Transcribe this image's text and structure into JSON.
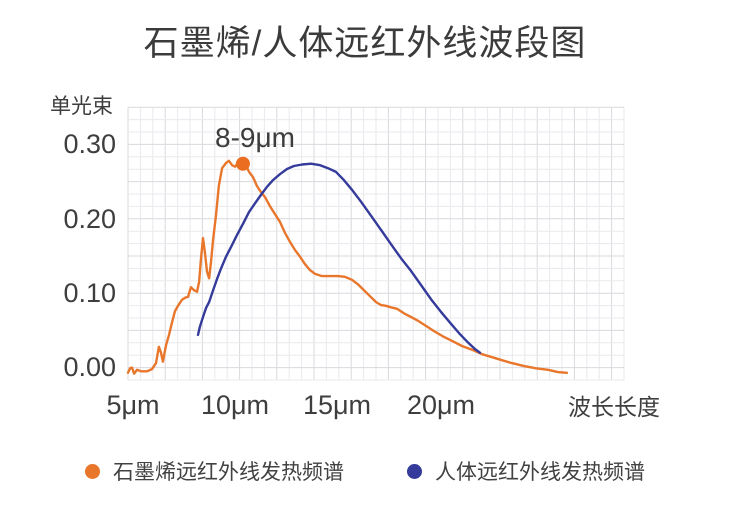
{
  "page": {
    "title": "石墨烯/人体远红外线波段图"
  },
  "chart_data": {
    "type": "line",
    "title": "石墨烯/人体远红外线波段图",
    "y_axis": {
      "unit_label": "单光束",
      "ticks": [
        "0.30",
        "0.20",
        "0.10",
        "0.00"
      ],
      "tick_values": [
        0.3,
        0.2,
        0.1,
        0.0
      ],
      "range": [
        -0.017,
        0.35
      ]
    },
    "x_axis": {
      "label": "波长长度",
      "unit": "μm",
      "ticks": [
        "5μm",
        "10μm",
        "15μm",
        "20μm"
      ],
      "tick_values": [
        5,
        10,
        15,
        20
      ],
      "range": [
        5,
        28.7
      ]
    },
    "grid": {
      "show": true,
      "minor_color": "#eaeaee",
      "major_color": "#d9d9de",
      "major_every": 3
    },
    "annotation": {
      "label": "8-9μm",
      "marker": {
        "x": 10.5,
        "y": 0.274
      },
      "marker_color": "#EA6D20",
      "marker_radius": 7
    },
    "legend_position": "bottom",
    "series": [
      {
        "name": "石墨烯远红外线发热频谱",
        "color": "#E8762B",
        "points": [
          [
            5.0,
            -0.007
          ],
          [
            5.1,
            -0.001
          ],
          [
            5.19,
            0.0
          ],
          [
            5.29,
            -0.008
          ],
          [
            5.43,
            -0.003
          ],
          [
            5.62,
            -0.005
          ],
          [
            5.91,
            -0.005
          ],
          [
            6.15,
            -0.002
          ],
          [
            6.34,
            0.006
          ],
          [
            6.48,
            0.028
          ],
          [
            6.58,
            0.02
          ],
          [
            6.67,
            0.008
          ],
          [
            6.82,
            0.03
          ],
          [
            6.96,
            0.044
          ],
          [
            7.11,
            0.061
          ],
          [
            7.25,
            0.076
          ],
          [
            7.39,
            0.083
          ],
          [
            7.58,
            0.091
          ],
          [
            7.73,
            0.094
          ],
          [
            7.87,
            0.095
          ],
          [
            8.01,
            0.108
          ],
          [
            8.16,
            0.104
          ],
          [
            8.3,
            0.102
          ],
          [
            8.4,
            0.115
          ],
          [
            8.49,
            0.145
          ],
          [
            8.59,
            0.174
          ],
          [
            8.68,
            0.155
          ],
          [
            8.78,
            0.129
          ],
          [
            8.88,
            0.12
          ],
          [
            8.97,
            0.142
          ],
          [
            9.07,
            0.172
          ],
          [
            9.21,
            0.205
          ],
          [
            9.35,
            0.245
          ],
          [
            9.5,
            0.268
          ],
          [
            9.69,
            0.275
          ],
          [
            9.83,
            0.278
          ],
          [
            9.98,
            0.272
          ],
          [
            10.12,
            0.27
          ],
          [
            10.26,
            0.275
          ],
          [
            10.45,
            0.278
          ],
          [
            10.6,
            0.275
          ],
          [
            10.79,
            0.263
          ],
          [
            10.98,
            0.256
          ],
          [
            11.17,
            0.244
          ],
          [
            11.36,
            0.236
          ],
          [
            11.56,
            0.229
          ],
          [
            11.75,
            0.219
          ],
          [
            11.99,
            0.208
          ],
          [
            12.27,
            0.196
          ],
          [
            12.51,
            0.181
          ],
          [
            12.75,
            0.169
          ],
          [
            12.99,
            0.158
          ],
          [
            13.23,
            0.149
          ],
          [
            13.47,
            0.139
          ],
          [
            13.71,
            0.131
          ],
          [
            13.95,
            0.126
          ],
          [
            14.28,
            0.123
          ],
          [
            14.67,
            0.123
          ],
          [
            15.05,
            0.123
          ],
          [
            15.38,
            0.122
          ],
          [
            15.72,
            0.118
          ],
          [
            16.0,
            0.112
          ],
          [
            16.29,
            0.104
          ],
          [
            16.58,
            0.096
          ],
          [
            16.87,
            0.088
          ],
          [
            17.11,
            0.084
          ],
          [
            17.34,
            0.083
          ],
          [
            17.58,
            0.081
          ],
          [
            17.87,
            0.079
          ],
          [
            18.2,
            0.073
          ],
          [
            18.54,
            0.068
          ],
          [
            18.87,
            0.063
          ],
          [
            19.26,
            0.056
          ],
          [
            19.64,
            0.049
          ],
          [
            20.07,
            0.042
          ],
          [
            20.5,
            0.036
          ],
          [
            20.98,
            0.029
          ],
          [
            21.46,
            0.024
          ],
          [
            21.94,
            0.018
          ],
          [
            22.42,
            0.014
          ],
          [
            22.89,
            0.01
          ],
          [
            23.37,
            0.006
          ],
          [
            23.95,
            0.002
          ],
          [
            24.52,
            -0.001
          ],
          [
            25.1,
            -0.003
          ],
          [
            25.57,
            -0.006
          ],
          [
            26.0,
            -0.007
          ]
        ]
      },
      {
        "name": "人体远红外线发热频谱",
        "color": "#343B9B",
        "points": [
          [
            8.35,
            0.044
          ],
          [
            8.44,
            0.055
          ],
          [
            8.59,
            0.068
          ],
          [
            8.73,
            0.08
          ],
          [
            8.88,
            0.088
          ],
          [
            9.07,
            0.104
          ],
          [
            9.26,
            0.119
          ],
          [
            9.45,
            0.133
          ],
          [
            9.69,
            0.149
          ],
          [
            9.93,
            0.162
          ],
          [
            10.21,
            0.178
          ],
          [
            10.5,
            0.193
          ],
          [
            10.79,
            0.209
          ],
          [
            11.08,
            0.221
          ],
          [
            11.36,
            0.232
          ],
          [
            11.65,
            0.243
          ],
          [
            11.94,
            0.252
          ],
          [
            12.27,
            0.26
          ],
          [
            12.61,
            0.267
          ],
          [
            12.94,
            0.271
          ],
          [
            13.33,
            0.273
          ],
          [
            13.76,
            0.274
          ],
          [
            14.19,
            0.272
          ],
          [
            14.57,
            0.268
          ],
          [
            14.95,
            0.263
          ],
          [
            15.33,
            0.252
          ],
          [
            15.72,
            0.239
          ],
          [
            16.15,
            0.223
          ],
          [
            16.63,
            0.204
          ],
          [
            17.11,
            0.185
          ],
          [
            17.58,
            0.166
          ],
          [
            18.06,
            0.147
          ],
          [
            18.54,
            0.13
          ],
          [
            19.02,
            0.111
          ],
          [
            19.5,
            0.092
          ],
          [
            19.97,
            0.075
          ],
          [
            20.45,
            0.059
          ],
          [
            20.88,
            0.045
          ],
          [
            21.26,
            0.034
          ],
          [
            21.6,
            0.025
          ],
          [
            21.84,
            0.02
          ]
        ]
      }
    ]
  }
}
